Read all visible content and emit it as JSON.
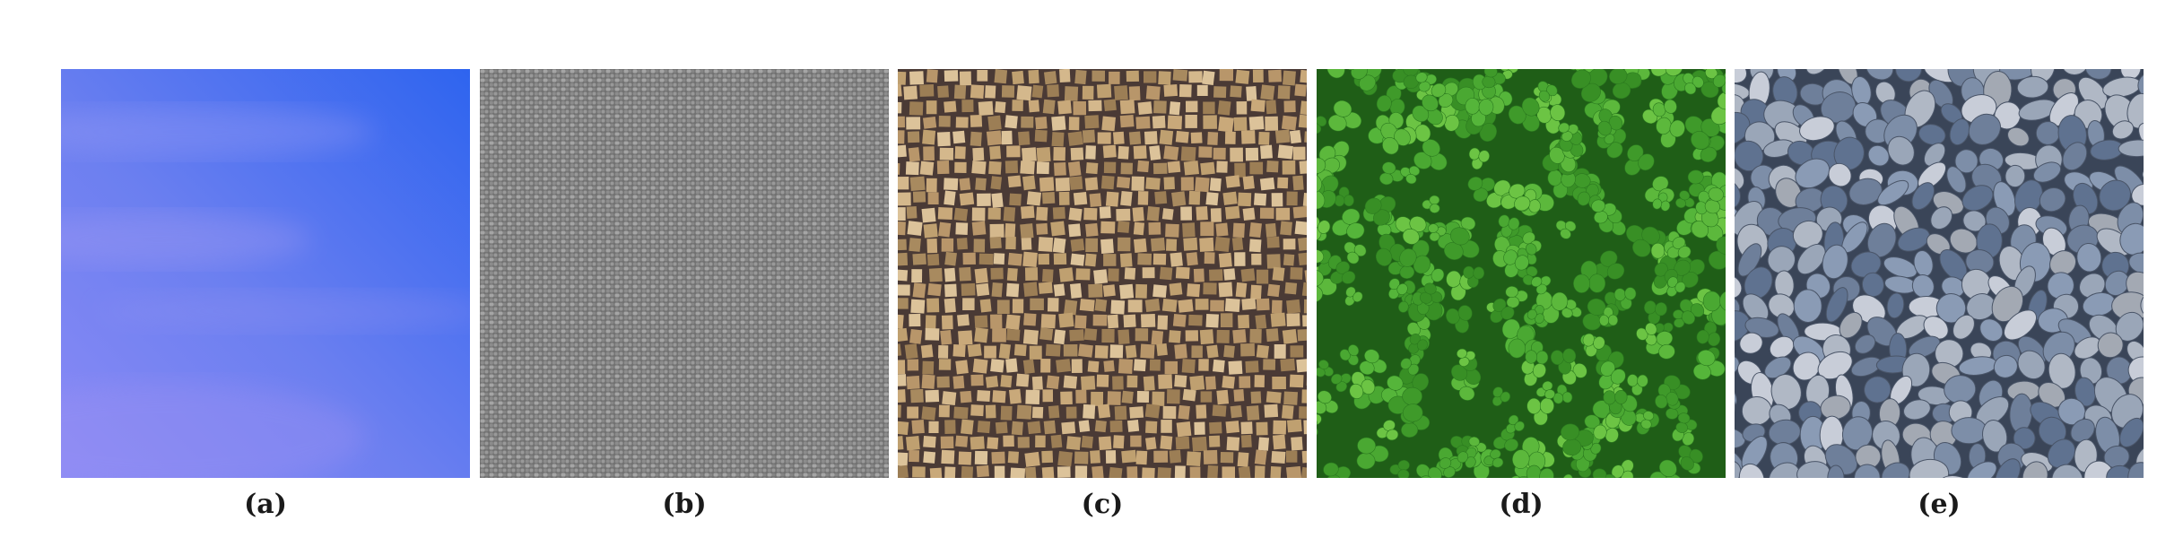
{
  "panels": [
    {
      "id": "a",
      "caption": "(a)",
      "texture": "blue-sky",
      "colors": [
        "#3a6cf0",
        "#6b80f0",
        "#8a8af5"
      ]
    },
    {
      "id": "b",
      "caption": "(b)",
      "texture": "gray-woven-fabric",
      "colors": [
        "#8c8c8c",
        "#5e5e5e",
        "#b4b4b4"
      ]
    },
    {
      "id": "c",
      "caption": "(c)",
      "texture": "tan-stone-mosaic",
      "colors": [
        "#c9a97a",
        "#4a3a35",
        "#a88a5f"
      ]
    },
    {
      "id": "d",
      "caption": "(d)",
      "texture": "green-clover-leaves",
      "colors": [
        "#3f9a2a",
        "#1f5e17",
        "#6cc444"
      ]
    },
    {
      "id": "e",
      "caption": "(e)",
      "texture": "gray-blue-pebbles",
      "colors": [
        "#8a9bb5",
        "#3a4558",
        "#c8cdd8"
      ]
    }
  ]
}
